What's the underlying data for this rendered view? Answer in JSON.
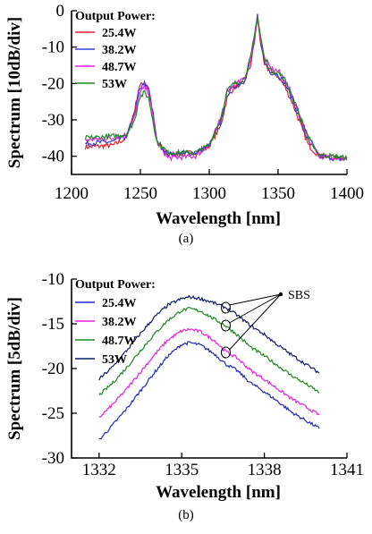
{
  "chart_data": [
    {
      "type": "line",
      "caption": "(a)",
      "xlabel": "Wavelength [nm]",
      "ylabel": "Spectrum [10dB/div]",
      "xlim": [
        1200,
        1400
      ],
      "ylim": [
        -45,
        0
      ],
      "x_ticks": [
        1200,
        1250,
        1300,
        1350,
        1400
      ],
      "y_ticks": [
        0,
        -10,
        -20,
        -30,
        -40
      ],
      "legend_title": "Output Power:",
      "legend_position": "top-left",
      "series": [
        {
          "name": "25.4W",
          "color": "#e8202a",
          "points": [
            [
              1210,
              -37.5
            ],
            [
              1230,
              -37
            ],
            [
              1240,
              -35
            ],
            [
              1246,
              -27
            ],
            [
              1249,
              -21
            ],
            [
              1253,
              -19.5
            ],
            [
              1256,
              -21
            ],
            [
              1259,
              -28
            ],
            [
              1262,
              -36
            ],
            [
              1270,
              -39.5
            ],
            [
              1290,
              -39
            ],
            [
              1300,
              -37
            ],
            [
              1308,
              -32
            ],
            [
              1313,
              -24
            ],
            [
              1318,
              -21
            ],
            [
              1325,
              -20
            ],
            [
              1330,
              -15
            ],
            [
              1333,
              -8
            ],
            [
              1335,
              -2
            ],
            [
              1337,
              -8
            ],
            [
              1340,
              -15
            ],
            [
              1345,
              -17
            ],
            [
              1350,
              -18
            ],
            [
              1355,
              -21
            ],
            [
              1360,
              -25
            ],
            [
              1366,
              -31
            ],
            [
              1372,
              -37
            ],
            [
              1380,
              -40
            ],
            [
              1390,
              -40.5
            ],
            [
              1400,
              -40.5
            ]
          ]
        },
        {
          "name": "38.2W",
          "color": "#3a3ad8",
          "points": [
            [
              1210,
              -36.5
            ],
            [
              1230,
              -36
            ],
            [
              1240,
              -34.5
            ],
            [
              1246,
              -28
            ],
            [
              1249,
              -22
            ],
            [
              1253,
              -20
            ],
            [
              1256,
              -21.5
            ],
            [
              1259,
              -28
            ],
            [
              1262,
              -36
            ],
            [
              1270,
              -39.5
            ],
            [
              1290,
              -39
            ],
            [
              1300,
              -37
            ],
            [
              1308,
              -31
            ],
            [
              1313,
              -23
            ],
            [
              1318,
              -21
            ],
            [
              1325,
              -19.5
            ],
            [
              1330,
              -14
            ],
            [
              1333,
              -7
            ],
            [
              1335,
              -1.5
            ],
            [
              1337,
              -7
            ],
            [
              1340,
              -14
            ],
            [
              1345,
              -17
            ],
            [
              1350,
              -17.5
            ],
            [
              1355,
              -20
            ],
            [
              1360,
              -24
            ],
            [
              1366,
              -30
            ],
            [
              1372,
              -36
            ],
            [
              1380,
              -40
            ],
            [
              1390,
              -40.5
            ],
            [
              1400,
              -41
            ]
          ]
        },
        {
          "name": "48.7W",
          "color": "#e020e0",
          "points": [
            [
              1210,
              -35.5
            ],
            [
              1230,
              -35
            ],
            [
              1240,
              -34
            ],
            [
              1246,
              -29
            ],
            [
              1249,
              -23
            ],
            [
              1253,
              -21
            ],
            [
              1256,
              -22.5
            ],
            [
              1259,
              -29
            ],
            [
              1262,
              -36
            ],
            [
              1270,
              -40.5
            ],
            [
              1290,
              -40
            ],
            [
              1300,
              -37
            ],
            [
              1308,
              -30
            ],
            [
              1313,
              -22
            ],
            [
              1318,
              -20
            ],
            [
              1325,
              -19
            ],
            [
              1330,
              -13.5
            ],
            [
              1333,
              -7
            ],
            [
              1335,
              -1.5
            ],
            [
              1337,
              -7
            ],
            [
              1340,
              -13
            ],
            [
              1345,
              -16
            ],
            [
              1350,
              -16.5
            ],
            [
              1355,
              -19
            ],
            [
              1360,
              -23
            ],
            [
              1366,
              -29
            ],
            [
              1372,
              -35
            ],
            [
              1380,
              -39.5
            ],
            [
              1390,
              -40.5
            ],
            [
              1400,
              -41
            ]
          ]
        },
        {
          "name": "53W",
          "color": "#1e8a1e",
          "points": [
            [
              1210,
              -35
            ],
            [
              1230,
              -34.5
            ],
            [
              1240,
              -34
            ],
            [
              1246,
              -30
            ],
            [
              1249,
              -24
            ],
            [
              1253,
              -22.5
            ],
            [
              1256,
              -24
            ],
            [
              1259,
              -30
            ],
            [
              1262,
              -36
            ],
            [
              1270,
              -39
            ],
            [
              1290,
              -39
            ],
            [
              1300,
              -37
            ],
            [
              1308,
              -30
            ],
            [
              1313,
              -22
            ],
            [
              1318,
              -20
            ],
            [
              1325,
              -19
            ],
            [
              1330,
              -13
            ],
            [
              1333,
              -6.5
            ],
            [
              1335,
              -1.5
            ],
            [
              1337,
              -6.5
            ],
            [
              1340,
              -13
            ],
            [
              1345,
              -16.5
            ],
            [
              1350,
              -17
            ],
            [
              1355,
              -19
            ],
            [
              1360,
              -23
            ],
            [
              1366,
              -29
            ],
            [
              1372,
              -35
            ],
            [
              1380,
              -39.5
            ],
            [
              1390,
              -40
            ],
            [
              1400,
              -40.5
            ]
          ]
        }
      ]
    },
    {
      "type": "line",
      "caption": "(b)",
      "xlabel": "Wavelength [nm]",
      "ylabel": "Spectrum [5dB/div]",
      "xlim": [
        1331,
        1341
      ],
      "ylim": [
        -30,
        -10
      ],
      "x_ticks": [
        1332,
        1335,
        1338,
        1341
      ],
      "y_ticks": [
        -10,
        -15,
        -20,
        -25,
        -30
      ],
      "legend_title": "Output Power:",
      "legend_position": "top-left",
      "annotation": "SBS",
      "sbs_points": [
        [
          1336.6,
          -13.2
        ],
        [
          1336.6,
          -15.2
        ],
        [
          1336.6,
          -18.2
        ]
      ],
      "series": [
        {
          "name": "25.4W",
          "color": "#1f2bbd",
          "points": [
            [
              1332,
              -28
            ],
            [
              1332.5,
              -26.3
            ],
            [
              1333,
              -24.5
            ],
            [
              1333.5,
              -22.5
            ],
            [
              1334,
              -20.5
            ],
            [
              1334.5,
              -18.6
            ],
            [
              1335,
              -17.3
            ],
            [
              1335.3,
              -17.1
            ],
            [
              1335.7,
              -17.4
            ],
            [
              1336.2,
              -18.4
            ],
            [
              1336.6,
              -19.5
            ],
            [
              1337,
              -20.2
            ],
            [
              1337.5,
              -21.6
            ],
            [
              1338,
              -22.6
            ],
            [
              1338.5,
              -23.7
            ],
            [
              1339,
              -24.9
            ],
            [
              1339.5,
              -25.8
            ],
            [
              1340,
              -26.7
            ]
          ]
        },
        {
          "name": "38.2W",
          "color": "#e820e0",
          "points": [
            [
              1332,
              -25.5
            ],
            [
              1332.5,
              -24
            ],
            [
              1333,
              -22.3
            ],
            [
              1333.5,
              -20.4
            ],
            [
              1334,
              -18.5
            ],
            [
              1334.5,
              -16.8
            ],
            [
              1335,
              -15.8
            ],
            [
              1335.3,
              -15.6
            ],
            [
              1335.7,
              -15.9
            ],
            [
              1336.2,
              -16.9
            ],
            [
              1336.6,
              -18.1
            ],
            [
              1337,
              -18.8
            ],
            [
              1337.5,
              -20.2
            ],
            [
              1338,
              -21.2
            ],
            [
              1338.5,
              -22.3
            ],
            [
              1339,
              -23.4
            ],
            [
              1339.5,
              -24.3
            ],
            [
              1340,
              -25.2
            ]
          ]
        },
        {
          "name": "48.7W",
          "color": "#1e8a1e",
          "points": [
            [
              1332,
              -23
            ],
            [
              1332.5,
              -21.6
            ],
            [
              1333,
              -19.9
            ],
            [
              1333.5,
              -18
            ],
            [
              1334,
              -16.2
            ],
            [
              1334.5,
              -14.6
            ],
            [
              1335,
              -13.5
            ],
            [
              1335.3,
              -13.3
            ],
            [
              1335.7,
              -13.6
            ],
            [
              1336.2,
              -14.5
            ],
            [
              1336.6,
              -15.2
            ],
            [
              1337,
              -16.2
            ],
            [
              1337.5,
              -17.6
            ],
            [
              1338,
              -18.6
            ],
            [
              1338.5,
              -19.7
            ],
            [
              1339,
              -20.8
            ],
            [
              1339.5,
              -21.7
            ],
            [
              1340,
              -22.7
            ]
          ]
        },
        {
          "name": "53W",
          "color": "#0f1a6a",
          "points": [
            [
              1332,
              -21.2
            ],
            [
              1332.5,
              -19.8
            ],
            [
              1333,
              -18
            ],
            [
              1333.5,
              -16.1
            ],
            [
              1334,
              -14.3
            ],
            [
              1334.5,
              -12.9
            ],
            [
              1335,
              -12.2
            ],
            [
              1335.3,
              -12
            ],
            [
              1335.7,
              -12.2
            ],
            [
              1336.2,
              -12.7
            ],
            [
              1336.6,
              -13.2
            ],
            [
              1337,
              -14
            ],
            [
              1337.5,
              -15.2
            ],
            [
              1338,
              -16.2
            ],
            [
              1338.5,
              -17.4
            ],
            [
              1339,
              -18.5
            ],
            [
              1339.5,
              -19.5
            ],
            [
              1340,
              -20.5
            ]
          ]
        }
      ]
    }
  ]
}
